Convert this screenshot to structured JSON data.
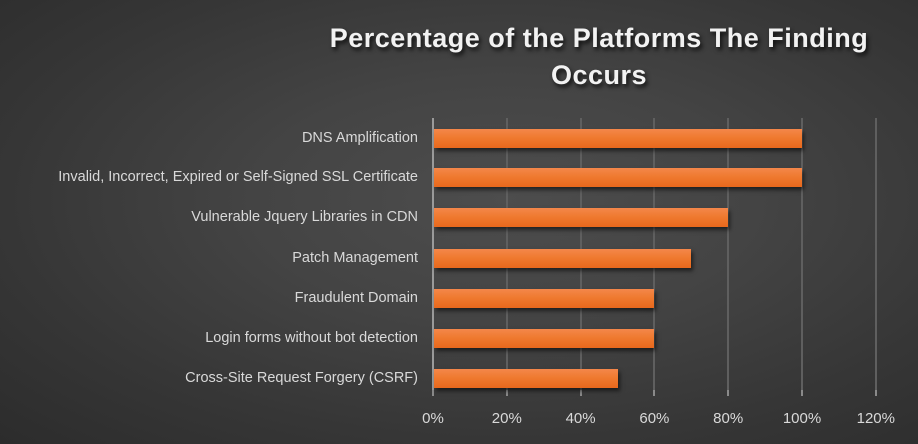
{
  "chart_data": {
    "type": "bar",
    "orientation": "horizontal",
    "title": "Percentage of the Platforms The Finding Occurs",
    "title_lines": [
      "Percentage of the Platforms The Finding",
      "Occurs"
    ],
    "categories": [
      "DNS Amplification",
      "Invalid, Incorrect, Expired or Self-Signed SSL Certificate",
      "Vulnerable Jquery Libraries in CDN",
      "Patch Management",
      "Fraudulent Domain",
      "Login forms without bot detection",
      "Cross-Site Request Forgery (CSRF)"
    ],
    "values": [
      100,
      100,
      80,
      70,
      60,
      60,
      50
    ],
    "value_unit": "%",
    "xlabel": "",
    "ylabel": "",
    "xlim": [
      0,
      120
    ],
    "x_ticks": [
      "0%",
      "20%",
      "40%",
      "60%",
      "80%",
      "100%",
      "120%"
    ],
    "grid": true,
    "legend": null,
    "bar_color": "#ED7D31",
    "background_color": "#404040"
  }
}
